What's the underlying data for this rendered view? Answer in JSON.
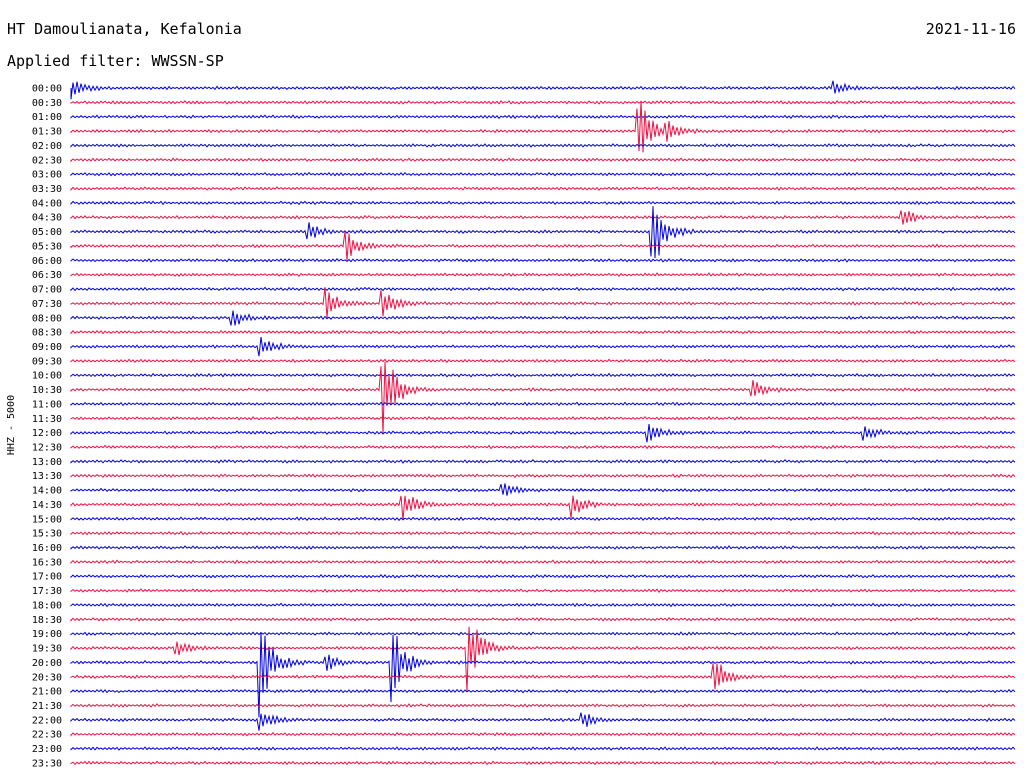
{
  "header": {
    "station": "HT Damoulianata, Kefalonia",
    "filter": "Applied filter: WWSSN-SP",
    "date": "2021-11-16"
  },
  "chart_data": {
    "type": "line",
    "ylabel": "HHZ - 5000",
    "colors": {
      "even_row": "#0000dd",
      "odd_row": "#ee1144",
      "axis_text": "#000000"
    },
    "rows": [
      "00:00",
      "00:30",
      "01:00",
      "01:30",
      "02:00",
      "02:30",
      "03:00",
      "03:30",
      "04:00",
      "04:30",
      "05:00",
      "05:30",
      "06:00",
      "06:30",
      "07:00",
      "07:30",
      "08:00",
      "08:30",
      "09:00",
      "09:30",
      "10:00",
      "10:30",
      "11:00",
      "11:30",
      "12:00",
      "12:30",
      "13:00",
      "13:30",
      "14:00",
      "14:30",
      "15:00",
      "15:30",
      "16:00",
      "16:30",
      "17:00",
      "17:30",
      "18:00",
      "18:30",
      "19:00",
      "19:30",
      "20:00",
      "20:30",
      "21:00",
      "21:30",
      "22:00",
      "22:30",
      "23:00",
      "23:30"
    ],
    "events": [
      {
        "row": 0,
        "t": 0.0,
        "amp": 1.0
      },
      {
        "row": 0,
        "t": 0.808,
        "amp": 0.7
      },
      {
        "row": 3,
        "t": 0.6,
        "amp": 3.5
      },
      {
        "row": 3,
        "t": 0.63,
        "amp": 0.8
      },
      {
        "row": 9,
        "t": 0.88,
        "amp": 0.9
      },
      {
        "row": 10,
        "t": 0.615,
        "amp": 4.0
      },
      {
        "row": 10,
        "t": 0.25,
        "amp": 1.0
      },
      {
        "row": 11,
        "t": 0.29,
        "amp": 1.5
      },
      {
        "row": 15,
        "t": 0.27,
        "amp": 1.5
      },
      {
        "row": 15,
        "t": 0.33,
        "amp": 1.5
      },
      {
        "row": 16,
        "t": 0.17,
        "amp": 1.0
      },
      {
        "row": 18,
        "t": 0.2,
        "amp": 1.0
      },
      {
        "row": 21,
        "t": 0.33,
        "amp": 5.0
      },
      {
        "row": 21,
        "t": 0.72,
        "amp": 1.2
      },
      {
        "row": 24,
        "t": 0.61,
        "amp": 1.0
      },
      {
        "row": 24,
        "t": 0.84,
        "amp": 0.8
      },
      {
        "row": 29,
        "t": 0.35,
        "amp": 1.8
      },
      {
        "row": 29,
        "t": 0.53,
        "amp": 1.2
      },
      {
        "row": 28,
        "t": 0.455,
        "amp": 0.8
      },
      {
        "row": 39,
        "t": 0.11,
        "amp": 1.0
      },
      {
        "row": 40,
        "t": 0.2,
        "amp": 5.0
      },
      {
        "row": 40,
        "t": 0.34,
        "amp": 4.0
      },
      {
        "row": 39,
        "t": 0.42,
        "amp": 4.0
      },
      {
        "row": 40,
        "t": 0.27,
        "amp": 0.9
      },
      {
        "row": 41,
        "t": 0.68,
        "amp": 2.0
      },
      {
        "row": 44,
        "t": 0.2,
        "amp": 1.0
      },
      {
        "row": 44,
        "t": 0.54,
        "amp": 1.0
      }
    ]
  }
}
